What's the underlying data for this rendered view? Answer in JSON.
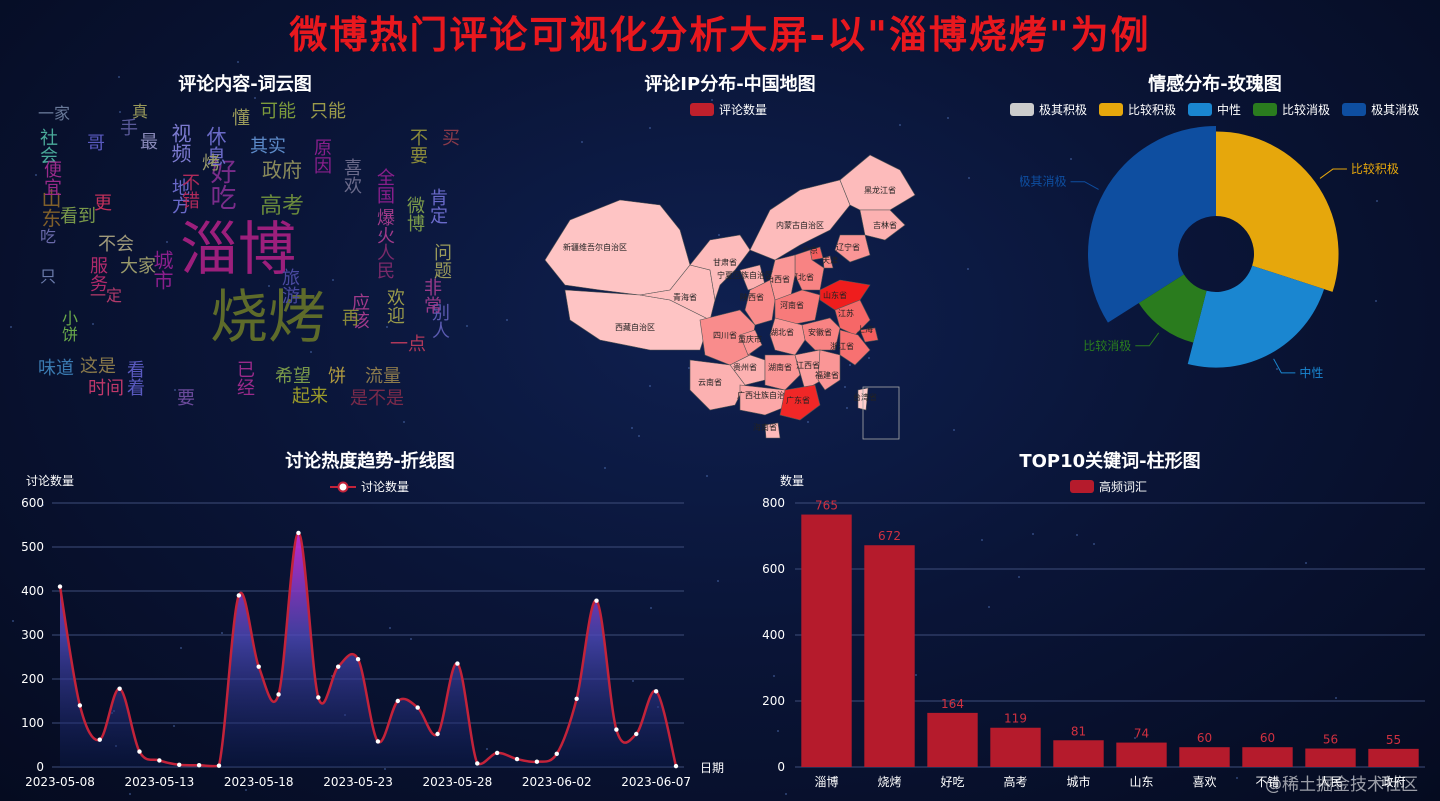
{
  "header": {
    "title": "微博热门评论可视化分析大屏-以\"淄博烧烤\"为例"
  },
  "wordcloud": {
    "title": "评论内容-词云图",
    "words": [
      {
        "text": "淄博",
        "color": "#9c1f7c"
      },
      {
        "text": "烧烤",
        "color": "#5e6b2a"
      },
      {
        "text": "好吃",
        "color": "#7a2c8a"
      },
      {
        "text": "高考",
        "color": "#6a8a3c"
      },
      {
        "text": "政府",
        "color": "#8a8a5a"
      },
      {
        "text": "城市",
        "color": "#8a1f8c"
      },
      {
        "text": "山东",
        "color": "#7f5f2a"
      },
      {
        "text": "可能",
        "color": "#7c9a3c"
      },
      {
        "text": "只能",
        "color": "#9a9a4a"
      },
      {
        "text": "视频",
        "color": "#7c7ad0"
      },
      {
        "text": "休息",
        "color": "#6b6bc9"
      },
      {
        "text": "其实",
        "color": "#5c8ac8"
      },
      {
        "text": "原因",
        "color": "#8a1f8c"
      },
      {
        "text": "希望",
        "color": "#7a9a4a"
      },
      {
        "text": "流量",
        "color": "#8c7a4c"
      },
      {
        "text": "饼",
        "color": "#b09a40"
      },
      {
        "text": "这是",
        "color": "#8a7a4a"
      },
      {
        "text": "时间",
        "color": "#c0386a"
      },
      {
        "text": "味道",
        "color": "#3a7ab0"
      },
      {
        "text": "服务",
        "color": "#b02a6a"
      },
      {
        "text": "小饼",
        "color": "#6aaa4a"
      },
      {
        "text": "不会",
        "color": "#a09a7a"
      },
      {
        "text": "大家",
        "color": "#9a9a6a"
      },
      {
        "text": "社会",
        "color": "#4aaa9a"
      },
      {
        "text": "一家",
        "color": "#6a7a9a"
      },
      {
        "text": "手",
        "color": "#5a5a9a"
      },
      {
        "text": "最",
        "color": "#8a8aba"
      },
      {
        "text": "懂",
        "color": "#9a9a5a"
      },
      {
        "text": "起来",
        "color": "#9a9a2a"
      },
      {
        "text": "一点",
        "color": "#b0385a"
      },
      {
        "text": "欢迎",
        "color": "#9a9a4a"
      },
      {
        "text": "应该",
        "color": "#a03a8a"
      },
      {
        "text": "问题",
        "color": "#9a9a5a"
      },
      {
        "text": "肯定",
        "color": "#6a6aca"
      },
      {
        "text": "微博",
        "color": "#7a9a4a"
      },
      {
        "text": "别人",
        "color": "#5a5ab0"
      },
      {
        "text": "非常",
        "color": "#9a3a8a"
      },
      {
        "text": "再",
        "color": "#8a8a3a"
      },
      {
        "text": "看着",
        "color": "#5a5ac0"
      },
      {
        "text": "已经",
        "color": "#9a2a8a"
      },
      {
        "text": "是不是",
        "color": "#7a2a4a"
      },
      {
        "text": "便宜",
        "color": "#9a2a8a"
      },
      {
        "text": "看到",
        "color": "#7a9a4a"
      },
      {
        "text": "更",
        "color": "#c0305a"
      },
      {
        "text": "地方",
        "color": "#6a6aca"
      },
      {
        "text": "人民",
        "color": "#7a2a6a"
      },
      {
        "text": "不要",
        "color": "#8a8a3a"
      },
      {
        "text": "喜欢",
        "color": "#6a6a8a"
      },
      {
        "text": "全国",
        "color": "#8a1f8c"
      },
      {
        "text": "真",
        "color": "#9a9a5a"
      },
      {
        "text": "哥",
        "color": "#5a5ac0"
      },
      {
        "text": "旅游",
        "color": "#4a4aa0"
      },
      {
        "text": "不错",
        "color": "#b02a5a"
      },
      {
        "text": "烤",
        "color": "#9a9a6a"
      },
      {
        "text": "吃",
        "color": "#6a6aaa"
      },
      {
        "text": "只",
        "color": "#6a7aaa"
      },
      {
        "text": "要",
        "color": "#6a4a9a"
      },
      {
        "text": "买",
        "color": "#8a3a4a"
      },
      {
        "text": "爆火",
        "color": "#a03a8a"
      },
      {
        "text": "一定",
        "color": "#b03a6a"
      }
    ]
  },
  "map": {
    "title": "评论IP分布-中国地图",
    "legend": "评论数量",
    "legend_color": "#c0202c",
    "provinces": [
      {
        "name": "新疆维吾尔自治区",
        "level": 0.05
      },
      {
        "name": "西藏自治区",
        "level": 0.05
      },
      {
        "name": "青海省",
        "level": 0.08
      },
      {
        "name": "甘肃省",
        "level": 0.1
      },
      {
        "name": "内蒙古自治区",
        "level": 0.1
      },
      {
        "name": "黑龙江省",
        "level": 0.1
      },
      {
        "name": "吉林省",
        "level": 0.15
      },
      {
        "name": "辽宁省",
        "level": 0.3
      },
      {
        "name": "北京",
        "level": 0.6
      },
      {
        "name": "天津",
        "level": 0.35
      },
      {
        "name": "河北省",
        "level": 0.4
      },
      {
        "name": "山西省",
        "level": 0.3
      },
      {
        "name": "宁夏回族自治区",
        "level": 0.15
      },
      {
        "name": "陕西省",
        "level": 0.35
      },
      {
        "name": "河南省",
        "level": 0.45
      },
      {
        "name": "山东省",
        "level": 0.95
      },
      {
        "name": "江苏",
        "level": 0.55
      },
      {
        "name": "安徽省",
        "level": 0.4
      },
      {
        "name": "上海",
        "level": 0.6
      },
      {
        "name": "浙江省",
        "level": 0.5
      },
      {
        "name": "湖北省",
        "level": 0.3
      },
      {
        "name": "四川省",
        "level": 0.35
      },
      {
        "name": "重庆市",
        "level": 0.3
      },
      {
        "name": "贵州省",
        "level": 0.15
      },
      {
        "name": "湖南省",
        "level": 0.3
      },
      {
        "name": "江西省",
        "level": 0.25
      },
      {
        "name": "福建省",
        "level": 0.3
      },
      {
        "name": "云南省",
        "level": 0.15
      },
      {
        "name": "广西壮族自治区",
        "level": 0.2
      },
      {
        "name": "广东省",
        "level": 0.9
      },
      {
        "name": "海南省",
        "level": 0.1
      },
      {
        "name": "台湾省",
        "level": 0.0
      }
    ]
  },
  "rose": {
    "title": "情感分布-玫瑰图",
    "chart_data": {
      "type": "pie",
      "variant": "rose",
      "legend_position": "top-right",
      "slices": [
        {
          "name": "极其积极",
          "value": 0,
          "color": "#cccccc"
        },
        {
          "name": "比较积极",
          "value": 30,
          "color": "#e6a70c"
        },
        {
          "name": "中性",
          "value": 24,
          "color": "#1a86d0"
        },
        {
          "name": "比较消极",
          "value": 12,
          "color": "#2a7c1e"
        },
        {
          "name": "极其消极",
          "value": 34,
          "color": "#0e4ea0"
        }
      ],
      "labels": [
        "比较积极",
        "中性",
        "比较消极",
        "极其消极"
      ]
    }
  },
  "line": {
    "title": "讨论热度趋势-折线图",
    "ylabel": "讨论数量",
    "xlabel": "日期",
    "legend": "讨论数量",
    "chart_data": {
      "type": "area",
      "ylim": [
        0,
        600
      ],
      "yticks": [
        0,
        100,
        200,
        300,
        400,
        500,
        600
      ],
      "xtick_labels": [
        "2023-05-08",
        "2023-05-13",
        "2023-05-18",
        "2023-05-23",
        "2023-05-28",
        "2023-06-02",
        "2023-06-07"
      ],
      "start_date": "2023-05-08",
      "series": [
        {
          "name": "讨论数量",
          "values": [
            410,
            140,
            62,
            178,
            35,
            15,
            5,
            4,
            3,
            390,
            228,
            165,
            532,
            158,
            228,
            245,
            58,
            150,
            135,
            75,
            235,
            8,
            32,
            18,
            12,
            30,
            155,
            378,
            85,
            75,
            172,
            2
          ]
        }
      ]
    }
  },
  "bar": {
    "title": "TOP10关键词-柱形图",
    "ylabel": "数量",
    "legend": "高频词汇",
    "color": "#b51b2c",
    "chart_data": {
      "type": "bar",
      "ylim": [
        0,
        800
      ],
      "yticks": [
        0,
        200,
        400,
        600,
        800
      ],
      "categories": [
        "淄博",
        "烧烤",
        "好吃",
        "高考",
        "城市",
        "山东",
        "喜欢",
        "不错",
        "人民",
        "政府"
      ],
      "values": [
        765,
        672,
        164,
        119,
        81,
        74,
        60,
        60,
        56,
        55
      ]
    }
  },
  "watermark": "@稀土掘金技术社区"
}
